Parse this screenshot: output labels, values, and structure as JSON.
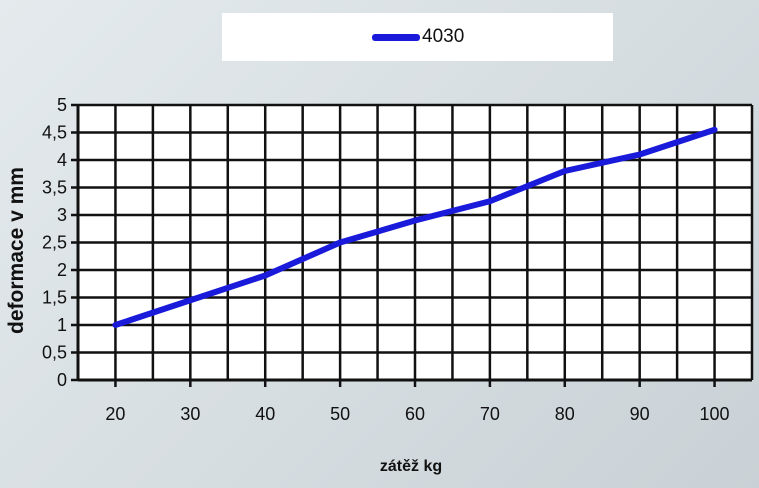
{
  "chart_data": {
    "type": "line",
    "title": "",
    "xlabel": "zátěž kg",
    "ylabel": "deformace v mm",
    "x": [
      20,
      30,
      40,
      50,
      60,
      70,
      80,
      90,
      100
    ],
    "xticks": [
      "20",
      "30",
      "40",
      "50",
      "60",
      "70",
      "80",
      "90",
      "100"
    ],
    "yticks": [
      "0",
      "0,5",
      "1",
      "1,5",
      "2",
      "2,5",
      "3",
      "3,5",
      "4",
      "4,5",
      "5"
    ],
    "xlim": [
      15,
      105
    ],
    "ylim": [
      0,
      5
    ],
    "grid": true,
    "legend_position": "top",
    "series": [
      {
        "name": "4030",
        "color": "#1a1adb",
        "values": [
          1.0,
          1.45,
          1.9,
          2.5,
          2.9,
          3.25,
          3.8,
          4.1,
          4.55
        ]
      }
    ]
  }
}
